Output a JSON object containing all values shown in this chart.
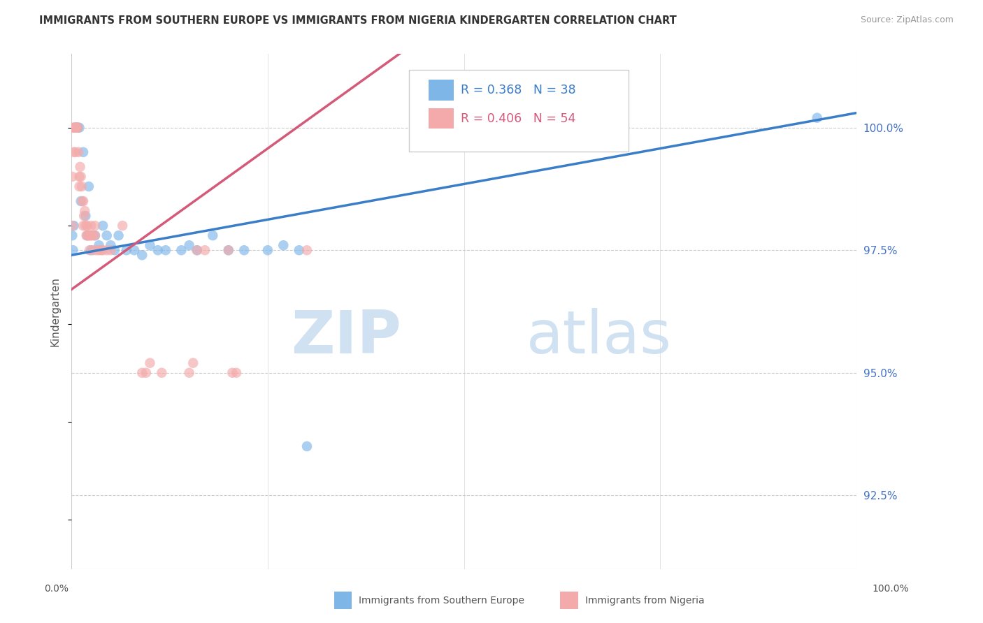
{
  "title": "IMMIGRANTS FROM SOUTHERN EUROPE VS IMMIGRANTS FROM NIGERIA KINDERGARTEN CORRELATION CHART",
  "source": "Source: ZipAtlas.com",
  "ylabel": "Kindergarten",
  "ylabel_right_ticks": [
    100.0,
    97.5,
    95.0,
    92.5
  ],
  "ylabel_right_labels": [
    "100.0%",
    "97.5%",
    "95.0%",
    "92.5%"
  ],
  "xlim": [
    0.0,
    100.0
  ],
  "ylim": [
    91.0,
    101.5
  ],
  "blue_color": "#7EB6E8",
  "pink_color": "#F4AAAA",
  "blue_line_color": "#3A7DC9",
  "pink_line_color": "#D45A7A",
  "watermark_zip": "ZIP",
  "watermark_atlas": "atlas",
  "blue_scatter_x": [
    0.1,
    0.2,
    0.3,
    0.5,
    0.6,
    0.7,
    0.8,
    1.0,
    1.2,
    1.5,
    1.8,
    2.0,
    2.2,
    2.5,
    3.0,
    3.5,
    4.0,
    4.5,
    5.0,
    5.5,
    6.0,
    7.0,
    8.0,
    9.0,
    10.0,
    11.0,
    12.0,
    14.0,
    15.0,
    16.0,
    18.0,
    20.0,
    22.0,
    25.0,
    27.0,
    29.0,
    30.0,
    95.0
  ],
  "blue_scatter_y": [
    97.8,
    97.5,
    98.0,
    100.0,
    100.0,
    100.0,
    100.0,
    100.0,
    98.5,
    99.5,
    98.2,
    97.8,
    98.8,
    97.5,
    97.8,
    97.6,
    98.0,
    97.8,
    97.6,
    97.5,
    97.8,
    97.5,
    97.5,
    97.4,
    97.6,
    97.5,
    97.5,
    97.5,
    97.6,
    97.5,
    97.8,
    97.5,
    97.5,
    97.5,
    97.6,
    97.5,
    93.5,
    100.2
  ],
  "pink_scatter_x": [
    0.1,
    0.1,
    0.2,
    0.3,
    0.3,
    0.4,
    0.5,
    0.5,
    0.6,
    0.7,
    0.8,
    0.9,
    1.0,
    1.0,
    1.1,
    1.2,
    1.3,
    1.4,
    1.5,
    1.5,
    1.6,
    1.7,
    1.8,
    1.9,
    2.0,
    2.1,
    2.2,
    2.3,
    2.4,
    2.5,
    2.5,
    2.7,
    2.8,
    3.0,
    3.0,
    3.2,
    3.5,
    3.8,
    4.0,
    4.5,
    5.0,
    6.5,
    9.0,
    9.5,
    10.0,
    11.5,
    15.0,
    15.5,
    16.0,
    17.0,
    20.0,
    20.5,
    21.0,
    30.0
  ],
  "pink_scatter_y": [
    98.0,
    99.0,
    100.0,
    100.0,
    99.5,
    100.0,
    100.0,
    99.5,
    100.0,
    100.0,
    100.0,
    99.5,
    99.0,
    98.8,
    99.2,
    99.0,
    98.8,
    98.5,
    98.5,
    98.0,
    98.2,
    98.3,
    98.0,
    97.8,
    98.0,
    97.8,
    97.8,
    97.5,
    97.8,
    97.8,
    98.0,
    97.8,
    97.5,
    97.8,
    98.0,
    97.5,
    97.5,
    97.5,
    97.5,
    97.5,
    97.5,
    98.0,
    95.0,
    95.0,
    95.2,
    95.0,
    95.0,
    95.2,
    97.5,
    97.5,
    97.5,
    95.0,
    95.0,
    97.5
  ]
}
